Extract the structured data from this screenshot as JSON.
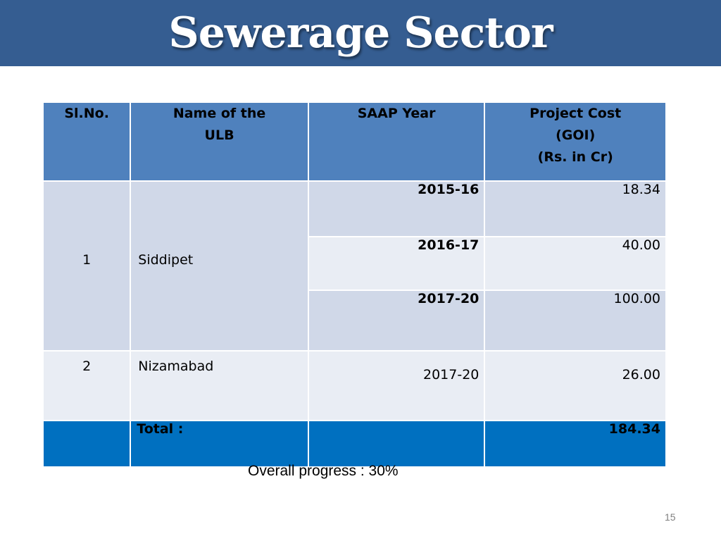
{
  "title": "Sewerage Sector",
  "table": {
    "headers": {
      "sl_no": "Sl.No.",
      "ulb_line1": "Name of the",
      "ulb_line2": "ULB",
      "saap_year": "SAAP Year",
      "cost_line1": "Project Cost",
      "cost_line2": "(GOI)",
      "cost_line3": "(Rs. in Cr)"
    },
    "rows": [
      {
        "sl_no": "1",
        "ulb": "Siddipet",
        "entries": [
          {
            "year": "2015-16",
            "cost": "18.34"
          },
          {
            "year": "2016-17",
            "cost": "40.00"
          },
          {
            "year": "2017-20",
            "cost": "100.00"
          }
        ]
      },
      {
        "sl_no": "2",
        "ulb": "Nizamabad",
        "entries": [
          {
            "year": "2017-20",
            "cost": "26.00"
          }
        ]
      }
    ],
    "total": {
      "label": "Total :",
      "value": "184.34"
    }
  },
  "progress_text": "Overall progress :  30%",
  "page_number": "15",
  "colors": {
    "title_bar": "#355d91",
    "header_bg": "#4f81bd",
    "row_shade_dark": "#d0d8e8",
    "row_shade_light": "#e9edf4",
    "total_bg": "#0070c0"
  }
}
